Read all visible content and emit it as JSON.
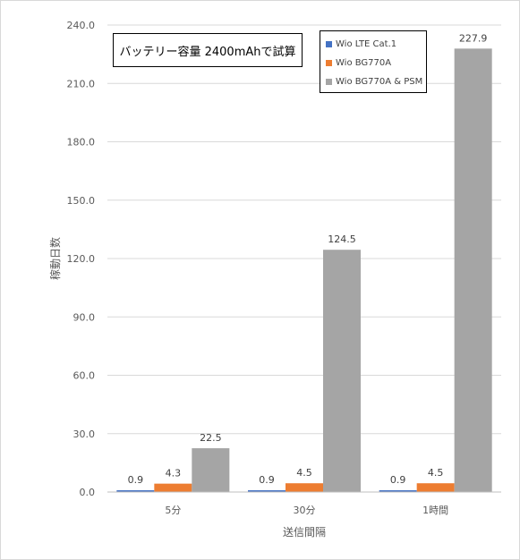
{
  "chart_data": {
    "type": "bar",
    "title": "",
    "annotation": "バッテリー容量 2400mAhで試算",
    "xlabel": "送信間隔",
    "ylabel": "稼動日数",
    "categories": [
      "5分",
      "30分",
      "1時間"
    ],
    "ylim": [
      0,
      240
    ],
    "yticks": [
      0,
      30,
      60,
      90,
      120,
      150,
      180,
      210,
      240
    ],
    "ytick_labels": [
      "0.0",
      "30.0",
      "60.0",
      "90.0",
      "120.0",
      "150.0",
      "180.0",
      "210.0",
      "240.0"
    ],
    "grid": true,
    "legend_position": "top-right",
    "series": [
      {
        "name": "Wio LTE Cat.1",
        "color": "#4472c4",
        "values": [
          0.9,
          0.9,
          0.9
        ],
        "labels": [
          "0.9",
          "0.9",
          "0.9"
        ]
      },
      {
        "name": "Wio BG770A",
        "color": "#ed7d31",
        "values": [
          4.3,
          4.5,
          4.5
        ],
        "labels": [
          "4.3",
          "4.5",
          "4.5"
        ]
      },
      {
        "name": "Wio BG770A & PSM",
        "color": "#a5a5a5",
        "values": [
          22.5,
          124.5,
          227.9
        ],
        "labels": [
          "22.5",
          "124.5",
          "227.9"
        ]
      }
    ]
  }
}
